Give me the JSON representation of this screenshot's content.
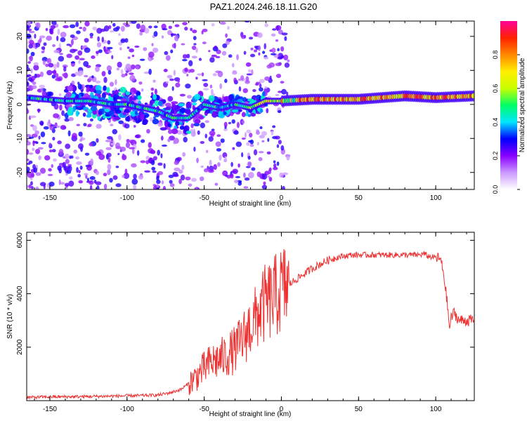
{
  "title": "PAZ1.2024.246.18.11.G20",
  "colors": {
    "snr_line": "#ee3030",
    "axis": "#000000"
  },
  "chart_data": [
    {
      "type": "heatmap",
      "xlabel": "Height of straight line (km)",
      "ylabel": "Frequency (Hz)",
      "xlim": [
        -165,
        125
      ],
      "ylim": [
        -25,
        24.5
      ],
      "xticks": [
        -150,
        -100,
        -50,
        0,
        50,
        100
      ],
      "xtick_labels": [
        "-150",
        "-100",
        "-50",
        "0",
        "50",
        "100"
      ],
      "yticks": [
        -20,
        -10,
        0,
        10,
        20
      ],
      "ytick_labels": [
        "-20",
        "-10",
        "0",
        "10",
        "20"
      ],
      "colorbar": {
        "label": "Normalized spectral amplitude",
        "range": [
          0,
          1
        ],
        "ticks": [
          0.0,
          0.2,
          0.4,
          0.6,
          0.8
        ],
        "tick_labels": [
          "0.0",
          "0.2",
          "0.4",
          "0.6",
          "0.8"
        ],
        "colormap": [
          "#ffffff",
          "#cc99ff",
          "#8800ff",
          "#0000ff",
          "#00e5ff",
          "#00ff66",
          "#c8ff00",
          "#ffee00",
          "#ff8800",
          "#ff2200",
          "#ff0099"
        ]
      },
      "ridge": {
        "x": [
          -165,
          -140,
          -125,
          -110,
          -100,
          -90,
          -80,
          -70,
          -60,
          -50,
          -40,
          -30,
          -20,
          -10,
          0,
          20,
          50,
          80,
          100,
          125
        ],
        "frequency": [
          2,
          1,
          1,
          0,
          0,
          -1,
          -2,
          -4,
          -4,
          0,
          -1,
          0,
          -1,
          1,
          1,
          1.5,
          1.5,
          2.5,
          2,
          2.5
        ]
      }
    },
    {
      "type": "line",
      "xlabel": "Height of straight line (km)",
      "ylabel": "SNR (10 * v/v)",
      "xlim": [
        -165,
        125
      ],
      "ylim": [
        0,
        6300
      ],
      "xticks": [
        -150,
        -100,
        -50,
        0,
        50,
        100
      ],
      "xtick_labels": [
        "-150",
        "-100",
        "-50",
        "0",
        "50",
        "100"
      ],
      "yticks": [
        2000,
        4000,
        6000
      ],
      "ytick_labels": [
        "2000",
        "4000",
        "6000"
      ],
      "series": [
        {
          "x": [
            -165,
            -150,
            -130,
            -110,
            -90,
            -80,
            -75,
            -70,
            -65,
            -60,
            -55,
            -50,
            -45,
            -40,
            -35,
            -30,
            -25,
            -20,
            -17,
            -15,
            -12,
            -10,
            -7,
            -5,
            -2,
            0,
            5,
            10,
            15,
            20,
            25,
            30,
            35,
            40,
            45,
            50,
            55,
            60,
            65,
            70,
            75,
            80,
            85,
            90,
            92,
            95,
            100,
            103,
            105,
            107,
            109,
            110,
            112,
            115,
            120,
            125
          ],
          "y": [
            120,
            140,
            150,
            170,
            190,
            210,
            260,
            330,
            420,
            650,
            900,
            1200,
            1450,
            1550,
            1700,
            1900,
            2300,
            2800,
            3000,
            3300,
            3500,
            3650,
            3750,
            3850,
            4000,
            4150,
            4350,
            4550,
            4750,
            4950,
            5100,
            5250,
            5350,
            5400,
            5450,
            5450,
            5450,
            5450,
            5450,
            5450,
            5450,
            5450,
            5450,
            5450,
            5500,
            5400,
            5350,
            5300,
            4800,
            3900,
            2700,
            3100,
            3300,
            3000,
            3000,
            3000
          ]
        }
      ]
    }
  ]
}
